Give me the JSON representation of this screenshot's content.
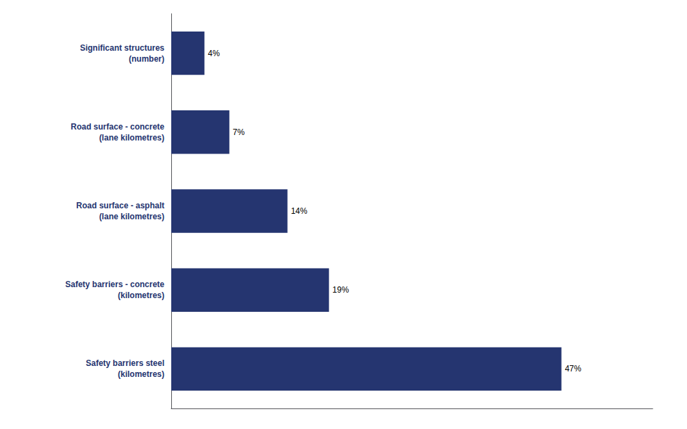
{
  "chart_data": {
    "type": "bar",
    "orientation": "horizontal",
    "categories": [
      "Safety barriers steel\n(kilometres)",
      "Safety barriers - concrete\n(kilometres)",
      "Road surface - asphalt\n(lane kilometres)",
      "Road surface - concrete\n(lane kilometres)",
      "Significant structures\n(number)"
    ],
    "values": [
      47,
      19,
      14,
      7,
      4
    ],
    "value_labels": [
      "47%",
      "19%",
      "14%",
      "7%",
      "4%"
    ],
    "color": "#253570",
    "xlim": [
      0,
      58
    ],
    "data_labels": true,
    "tick_labels": "y",
    "grid": false
  }
}
